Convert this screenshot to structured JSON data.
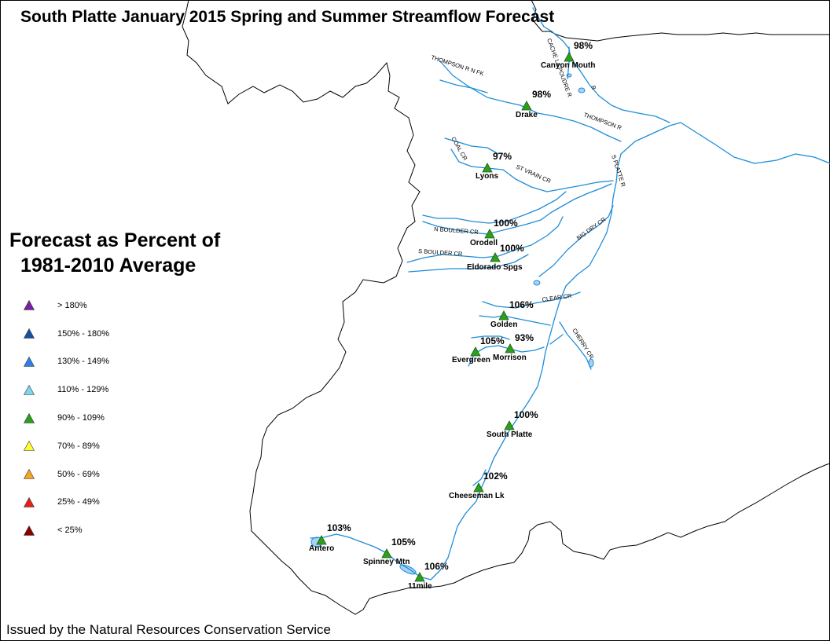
{
  "title": "South Platte January 2015 Spring and Summer Streamflow Forecast",
  "legend": {
    "heading_line1": "Forecast as Percent of",
    "heading_line2": "1981-2010 Average",
    "items": [
      {
        "label": "> 180%",
        "color": "#7b1fa2"
      },
      {
        "label": "150% - 180%",
        "color": "#1a4fa0"
      },
      {
        "label": "130% - 149%",
        "color": "#2f7fe8"
      },
      {
        "label": "110% - 129%",
        "color": "#7fd6f0"
      },
      {
        "label": "90% - 109%",
        "color": "#2e9e1e"
      },
      {
        "label": "70% - 89%",
        "color": "#ffff33"
      },
      {
        "label": "50% - 69%",
        "color": "#f5a623"
      },
      {
        "label": "25% - 49%",
        "color": "#e81e1e"
      },
      {
        "label": "< 25%",
        "color": "#8b0000"
      }
    ]
  },
  "sites": [
    {
      "name": "Canyon Mouth",
      "percent": "98%"
    },
    {
      "name": "Drake",
      "percent": "98%"
    },
    {
      "name": "Lyons",
      "percent": "97%"
    },
    {
      "name": "Orodell",
      "percent": "100%"
    },
    {
      "name": "Eldorado Spgs",
      "percent": "100%"
    },
    {
      "name": "Golden",
      "percent": "106%"
    },
    {
      "name": "Evergreen",
      "percent": "105%"
    },
    {
      "name": "Morrison",
      "percent": "93%"
    },
    {
      "name": "South Platte",
      "percent": "100%"
    },
    {
      "name": "Cheeseman Lk",
      "percent": "102%"
    },
    {
      "name": "Antero",
      "percent": "103%"
    },
    {
      "name": "Spinney Mtn",
      "percent": "105%"
    },
    {
      "name": "11mile",
      "percent": "106%"
    }
  ],
  "river_labels": {
    "thompson_nfk": "THOMPSON R N FK",
    "thompson": "THOMPSON R",
    "st_vrain": "ST VRAIN CR",
    "s_platte": "S PLATTE R",
    "n_boulder": "N BOULDER CR",
    "s_boulder": "S BOULDER CR",
    "big_dry": "BIG DRY CR",
    "clear": "CLEAR CR",
    "cherry": "CHERRY CR",
    "cache_la_poudre": "CACHE LA POUDRE R",
    "poudre_b": "B",
    "coal": "COAL CR"
  },
  "footer": "Issued by the Natural Resources Conservation Service",
  "colors": {
    "river": "#1f8dd6",
    "lake": "#a7d2f4",
    "boundary": "#000000",
    "site_marker": "#2e9e1e"
  }
}
